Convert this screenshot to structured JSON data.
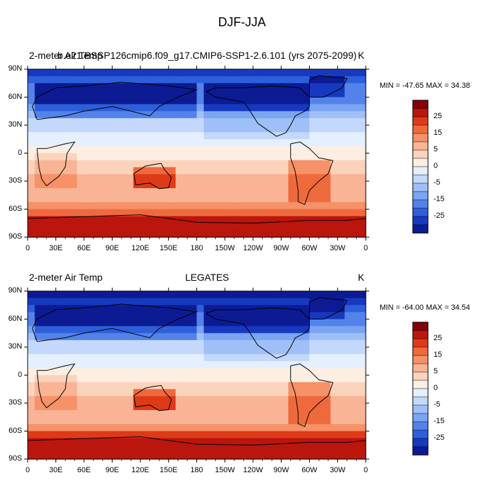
{
  "figure": {
    "title": "DJF-JJA"
  },
  "chart_data": [
    {
      "type": "heatmap",
      "left_label": "2-meter Air Temp",
      "center_label": "b.e21.BSSP126cmip6.f09_g17.CMIP6-SSP1-2.6.101 (yrs 2075-2099)",
      "units": "K",
      "min_max": "MIN = -47.65 MAX =  34.38",
      "x_ticks": [
        "0",
        "30E",
        "60E",
        "90E",
        "120E",
        "150E",
        "180",
        "150W",
        "120W",
        "90W",
        "60W",
        "30W",
        "0"
      ],
      "y_ticks": [
        "90N",
        "60N",
        "30N",
        "0",
        "30S",
        "60S",
        "90S"
      ],
      "colorbar_labels": [
        "25",
        "15",
        "5",
        "0",
        "-5",
        "-15",
        "-25"
      ]
    },
    {
      "type": "heatmap",
      "left_label": "2-meter Air Temp",
      "center_label": "LEGATES",
      "units": "K",
      "min_max": "MIN = -64.00 MAX =  34.54",
      "x_ticks": [
        "0",
        "30E",
        "60E",
        "90E",
        "120E",
        "150E",
        "180",
        "150W",
        "120W",
        "90W",
        "60W",
        "30W",
        "0"
      ],
      "y_ticks": [
        "90N",
        "60N",
        "30N",
        "0",
        "30S",
        "60S",
        "90S"
      ],
      "colorbar_labels": [
        "25",
        "15",
        "5",
        "0",
        "-5",
        "-15",
        "-25"
      ]
    }
  ],
  "colors": {
    "palette": [
      "#840005",
      "#ba160e",
      "#de3a18",
      "#ee6a3d",
      "#f69168",
      "#f9b495",
      "#fbd3bb",
      "#fdeee2",
      "#e4efff",
      "#c3d8fc",
      "#9ebff8",
      "#7ba4f2",
      "#5383ea",
      "#2e5fdb",
      "#1739bf",
      "#0c1b94"
    ]
  }
}
